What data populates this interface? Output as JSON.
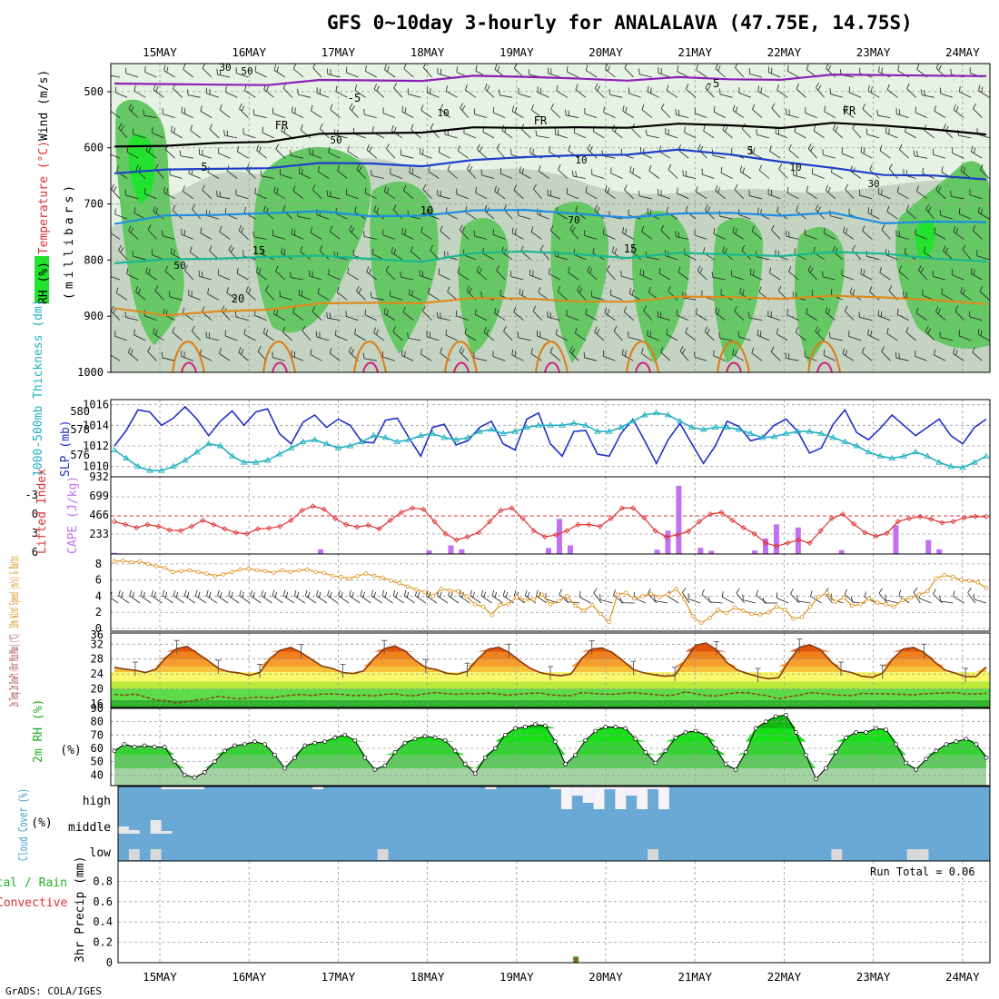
{
  "title": "GFS 0~10day 3-hourly for ANALALAVA (47.75E, 14.75S)",
  "credit": "GrADS: COLA/IGES",
  "days": [
    "15MAY",
    "16MAY",
    "17MAY",
    "18MAY",
    "19MAY",
    "20MAY",
    "21MAY",
    "22MAY",
    "23MAY",
    "24MAY"
  ],
  "chart_data": [
    {
      "id": "upper-air",
      "type": "heatmap",
      "ylabel_parts": [
        "RH (%)",
        "Temperature (°C)",
        "Wind (m/s)"
      ],
      "yunit": "(millibars)",
      "yticks": [
        500,
        600,
        700,
        800,
        900,
        1000
      ],
      "ylim": [
        1000,
        450
      ],
      "rh_contours": [
        "10",
        "30",
        "50",
        "70"
      ],
      "temp_contour_labels": [
        "-5",
        "FR",
        "5",
        "10",
        "15",
        "20"
      ],
      "series": [
        {
          "name": "-5",
          "color": "#8b1fb5",
          "levels": [
            490,
            488,
            486,
            484,
            482,
            480,
            478,
            476,
            475,
            475,
            476,
            477,
            478,
            476,
            474,
            472,
            470,
            468
          ]
        },
        {
          "name": "FR",
          "color": "#000000",
          "levels": [
            602,
            598,
            590,
            585,
            578,
            574,
            570,
            568,
            566,
            562,
            560,
            560,
            560,
            562,
            560,
            562,
            566,
            572
          ]
        },
        {
          "name": "5",
          "color": "#1f3fc8",
          "levels": [
            650,
            640,
            636,
            632,
            630,
            628,
            630,
            626,
            618,
            612,
            608,
            606,
            612,
            622,
            640,
            650,
            648,
            652
          ]
        },
        {
          "name": "10",
          "color": "#1c8ee0",
          "levels": [
            740,
            722,
            718,
            712,
            716,
            722,
            718,
            716,
            712,
            716,
            720,
            720,
            716,
            718,
            720,
            736,
            730,
            728
          ]
        },
        {
          "name": "15",
          "color": "#18b890",
          "levels": [
            810,
            800,
            796,
            790,
            795,
            798,
            800,
            792,
            786,
            788,
            792,
            790,
            790,
            790,
            790,
            790,
            796,
            798
          ]
        },
        {
          "name": "20",
          "color": "#e08a1c",
          "levels": [
            890,
            900,
            890,
            884,
            880,
            876,
            874,
            872,
            870,
            872,
            870,
            868,
            866,
            866,
            868,
            868,
            870,
            874
          ]
        }
      ]
    },
    {
      "id": "slp-thickness",
      "type": "line",
      "ylabel": "SLP (mb)",
      "ylabel2": "1000-500mb Thickness (dm)",
      "yticks": [
        1010,
        1012,
        1014,
        1016
      ],
      "yticks2": [
        576,
        578,
        580
      ],
      "ylim": [
        1009,
        1016.5
      ],
      "series": [
        {
          "name": "SLP",
          "color": "#2030c8",
          "values": [
            1012.0,
            1013.5,
            1015.5,
            1015.3,
            1014.0,
            1014.7,
            1015.8,
            1014.6,
            1013.0,
            1014.4,
            1015.4,
            1014.0,
            1015.3,
            1015.6,
            1013.2,
            1012.2,
            1014.3,
            1015.0,
            1013.8,
            1014.6,
            1014.0,
            1012.4,
            1012.3,
            1014.5,
            1014.7,
            1012.8,
            1011.0,
            1013.8,
            1014.1,
            1012.1,
            1012.5,
            1013.8,
            1014.4,
            1012.2,
            1011.6,
            1014.6,
            1015.2,
            1012.2,
            1011.0,
            1013.4,
            1013.5,
            1011.2,
            1011.0,
            1013.2,
            1014.6,
            1012.5,
            1010.3,
            1012.6,
            1014.2,
            1012.2,
            1010.3,
            1012.0,
            1014.4,
            1013.9,
            1012.5,
            1012.8,
            1014.0,
            1014.6,
            1013.4,
            1011.3,
            1011.8,
            1014.1,
            1015.5,
            1013.3,
            1012.6,
            1013.7,
            1015.0,
            1014.0,
            1013.0,
            1013.8,
            1014.6,
            1013.0,
            1012.2,
            1013.8,
            1014.6
          ]
        },
        {
          "name": "Thickness",
          "color": "#20b0c0",
          "values": [
            1011.6,
            1010.8,
            1010.0,
            1009.6,
            1009.6,
            1010.0,
            1010.6,
            1011.4,
            1012.2,
            1012.0,
            1011.0,
            1010.4,
            1010.4,
            1010.6,
            1011.2,
            1011.8,
            1012.4,
            1012.6,
            1012.2,
            1011.8,
            1012.0,
            1012.4,
            1013.0,
            1012.8,
            1012.4,
            1012.6,
            1013.0,
            1013.2,
            1012.8,
            1012.6,
            1012.8,
            1013.4,
            1013.6,
            1013.2,
            1013.4,
            1013.8,
            1014.0,
            1014.0,
            1014.0,
            1014.2,
            1014.0,
            1013.4,
            1013.4,
            1013.8,
            1014.4,
            1015.0,
            1015.2,
            1015.0,
            1014.4,
            1013.8,
            1013.6,
            1013.8,
            1013.8,
            1013.6,
            1013.2,
            1012.8,
            1012.9,
            1013.2,
            1013.4,
            1013.4,
            1013.2,
            1012.8,
            1012.4,
            1012.0,
            1011.4,
            1011.0,
            1010.8,
            1011.0,
            1011.4,
            1011.0,
            1010.4,
            1010.0,
            1009.9,
            1010.4,
            1011.0
          ]
        }
      ]
    },
    {
      "id": "lifted-cape",
      "type": "bar",
      "ylabel": "Lifted Index",
      "ylabel2": "CAPE (J/kg)",
      "yticks": [
        "-3",
        "0",
        "3",
        "6"
      ],
      "yticks2": [
        "932",
        "699",
        "466",
        "233"
      ],
      "ylim": [
        6,
        -6
      ],
      "series": [
        {
          "name": "Lifted Index",
          "color": "#e03030",
          "values": [
            1.0,
            1.5,
            2.0,
            1.5,
            1.8,
            2.4,
            2.5,
            1.8,
            0.8,
            1.5,
            2.2,
            2.8,
            3.0,
            2.2,
            2.1,
            1.8,
            0.8,
            -0.8,
            -1.5,
            -1.0,
            0.5,
            1.5,
            1.9,
            1.6,
            2.2,
            0.8,
            -0.5,
            -1.2,
            -1.0,
            1.0,
            3.0,
            4.0,
            3.5,
            2.8,
            1.0,
            -0.8,
            -1.2,
            0.5,
            2.5,
            3.5,
            3.2,
            2.5,
            1.5,
            1.5,
            1.8,
            0.5,
            -1.2,
            -1.2,
            0.4,
            2.5,
            3.5,
            3.2,
            2.6,
            1.0,
            -0.2,
            -0.5,
            0.8,
            2.0,
            3.0,
            4.5,
            5.0,
            4.5,
            4.0,
            4.5,
            2.5,
            0.5,
            -0.2,
            1.4,
            2.8,
            3.4,
            2.9,
            1.0,
            0.5,
            0.2,
            0.6,
            1.2,
            1.0,
            0.4,
            0.2,
            0.2
          ]
        },
        {
          "name": "CAPE",
          "color": "#c070f0",
          "values": [
            0,
            0,
            0,
            0,
            0,
            0,
            0,
            0,
            0,
            0,
            0,
            0,
            0,
            0,
            0,
            0,
            0,
            0,
            0,
            0,
            0,
            0,
            0,
            0,
            0,
            0,
            0,
            0,
            0,
            0,
            0,
            0,
            0,
            0,
            0,
            0,
            0,
            0,
            0,
            0,
            0,
            0,
            0,
            0,
            0,
            0,
            0,
            0,
            0,
            0,
            0,
            0,
            0,
            0,
            0,
            0,
            0,
            0,
            0,
            0,
            0,
            0,
            0,
            0,
            0,
            0,
            0,
            0,
            0,
            0,
            0,
            0,
            0,
            0,
            0,
            0,
            0,
            0,
            0,
            0
          ]
        },
        {
          "name": "CAPE bars",
          "color": "#c070f0",
          "x": [
            0,
            19,
            29,
            31,
            32,
            40,
            41,
            42,
            50,
            51,
            52,
            54,
            55,
            59,
            60,
            61,
            63,
            67,
            72,
            75,
            76,
            82,
            89
          ],
          "values": [
            15,
            60,
            45,
            110,
            60,
            75,
            450,
            110,
            55,
            300,
            875,
            80,
            40,
            45,
            200,
            380,
            340,
            50,
            370,
            180,
            60,
            130,
            80
          ]
        }
      ]
    },
    {
      "id": "wind10m",
      "type": "line",
      "ylabel": "10m Wind Speed (m/s) & Barbs",
      "yticks": [
        0,
        2,
        4,
        6,
        8
      ],
      "ylim": [
        0,
        9
      ],
      "series": [
        {
          "name": "Wind speed",
          "color": "#e0901c",
          "values": [
            8.3,
            8.4,
            8.2,
            8.3,
            8.0,
            7.7,
            7.5,
            7.0,
            7.1,
            7.2,
            7.0,
            6.8,
            6.5,
            6.7,
            7.0,
            7.3,
            7.4,
            7.2,
            7.1,
            6.9,
            7.2,
            7.0,
            7.2,
            7.3,
            7.0,
            6.9,
            6.5,
            6.4,
            6.2,
            6.5,
            6.8,
            6.5,
            6.3,
            5.9,
            5.6,
            5.2,
            4.8,
            4.5,
            4.0,
            4.9,
            4.7,
            4.6,
            4.0,
            3.0,
            2.7,
            1.7,
            2.9,
            3.0,
            3.9,
            3.5,
            3.6,
            4.2,
            3.0,
            3.4,
            4.0,
            2.8,
            2.2,
            2.9,
            1.8,
            0.8,
            4.2,
            4.4,
            3.7,
            4.0,
            4.3,
            3.9,
            4.2,
            4.9,
            3.6,
            1.5,
            0.7,
            1.3,
            2.3,
            1.9,
            2.6,
            2.2,
            1.8,
            1.7,
            2.0,
            2.7,
            2.3,
            1.2,
            1.4,
            2.7,
            3.9,
            4.4,
            3.3,
            3.8,
            2.8,
            3.0,
            3.7,
            3.2,
            3.0,
            2.7,
            3.5,
            3.8,
            4.2,
            4.6,
            6.2,
            6.6,
            6.4,
            6.0,
            5.9,
            5.7,
            5.0
          ]
        }
      ]
    },
    {
      "id": "temp2m",
      "type": "area",
      "ylabel": "2m Temp 2m DewPt (6hr Min/Max) (°C)",
      "yticks": [
        16,
        20,
        24,
        28,
        32
      ],
      "ylim": [
        15,
        35
      ],
      "series": [
        {
          "name": "Temp",
          "color": "#8a3a10",
          "values": [
            25.8,
            25.3,
            25.0,
            24.4,
            25.3,
            28.5,
            30.8,
            31.4,
            29.5,
            27.6,
            25.5,
            24.6,
            24.3,
            23.6,
            24.4,
            28.2,
            30.4,
            31.1,
            29.7,
            27.9,
            26.1,
            25.5,
            24.4,
            24.1,
            24.8,
            28.1,
            30.8,
            31.5,
            30.2,
            27.6,
            25.7,
            25.2,
            24.2,
            23.9,
            24.7,
            28.0,
            30.6,
            31.2,
            29.8,
            27.6,
            25.6,
            24.4,
            23.8,
            23.5,
            24.0,
            28.1,
            30.7,
            31.0,
            29.7,
            27.5,
            25.2,
            24.3,
            23.8,
            23.4,
            23.6,
            27.7,
            31.7,
            32.3,
            30.5,
            27.1,
            25.1,
            24.1,
            23.3,
            22.7,
            23.0,
            27.5,
            31.2,
            31.8,
            30.6,
            27.4,
            25.0,
            24.4,
            23.4,
            23.1,
            24.2,
            28.1,
            30.7,
            31.1,
            29.8,
            27.3,
            25.1,
            24.2,
            23.3,
            23.3,
            25.9
          ]
        },
        {
          "name": "DewPt",
          "color": "#8a3a10",
          "values": [
            18.5,
            18.3,
            18.6,
            17.8,
            17.0,
            16.8,
            16.2,
            16.6,
            17.1,
            17.3,
            18.0,
            17.6,
            17.3,
            17.6,
            17.8,
            17.5,
            18.0,
            18.3,
            18.5,
            18.2,
            18.6,
            18.6,
            18.5,
            18.2,
            18.3,
            18.1,
            18.5,
            18.7,
            18.2,
            18.2,
            18.7,
            19.0,
            18.7,
            18.5,
            18.8,
            18.6,
            18.9,
            18.6,
            18.3,
            18.6,
            18.8,
            18.9,
            18.4,
            18.2,
            18.2,
            19.0,
            18.8,
            18.6,
            18.5,
            18.8,
            19.0,
            18.7,
            18.5,
            18.2,
            18.4,
            19.2,
            18.7,
            18.2,
            18.1,
            18.6,
            19.0,
            18.9,
            18.5,
            18.1,
            17.3,
            17.9,
            18.3,
            19.0,
            18.8,
            18.5,
            18.3,
            18.2,
            18.8,
            18.7,
            18.7,
            18.6,
            18.5,
            18.4,
            18.7,
            18.8,
            18.9,
            19.0,
            18.6,
            18.6,
            18.8
          ]
        }
      ]
    },
    {
      "id": "rh2m",
      "type": "area",
      "ylabel": "2m RH (%)",
      "yticks": [
        40,
        50,
        60,
        70,
        80,
        90
      ],
      "ylim": [
        32,
        90
      ],
      "series": [
        {
          "name": "RH",
          "color": "#000000",
          "values": [
            58,
            63,
            61,
            62,
            61,
            61,
            50,
            40,
            38,
            42,
            50,
            58,
            62,
            63,
            65,
            63,
            55,
            45,
            53,
            62,
            64,
            65,
            68,
            70,
            66,
            53,
            44,
            47,
            57,
            64,
            67,
            69,
            68,
            66,
            58,
            48,
            41,
            53,
            60,
            70,
            75,
            76,
            78,
            77,
            65,
            48,
            55,
            66,
            73,
            76,
            76,
            75,
            67,
            57,
            49,
            58,
            68,
            72,
            73,
            70,
            60,
            48,
            44,
            57,
            75,
            80,
            84,
            85,
            72,
            55,
            37,
            45,
            57,
            68,
            72,
            72,
            75,
            74,
            63,
            49,
            44,
            52,
            58,
            63,
            65,
            67,
            63,
            53
          ]
        }
      ]
    },
    {
      "id": "cloud",
      "type": "heatmap",
      "ylabel": "Cloud Cover (%)",
      "yticks": [
        "high",
        "middle",
        "low"
      ]
    },
    {
      "id": "precip",
      "type": "bar",
      "ylabel": "3hr Precip (mm)",
      "ylabel_left": "Total / Rain",
      "ylabel_left2": "Convective",
      "yticks": [
        0,
        0.2,
        0.4,
        0.6,
        0.8
      ],
      "ylim": [
        0,
        1
      ],
      "annotation": "Run Total = 0.06",
      "x": [
        41
      ],
      "values": [
        0.06
      ]
    }
  ],
  "palette": {
    "rh_light": "#e6f2e3",
    "rh_mid": "#c5d3c3",
    "rh_green": "#65c865",
    "rh_bright": "#22e22f",
    "cloud_bg": "#6aa9d6",
    "grid": "#9a9a9a"
  }
}
